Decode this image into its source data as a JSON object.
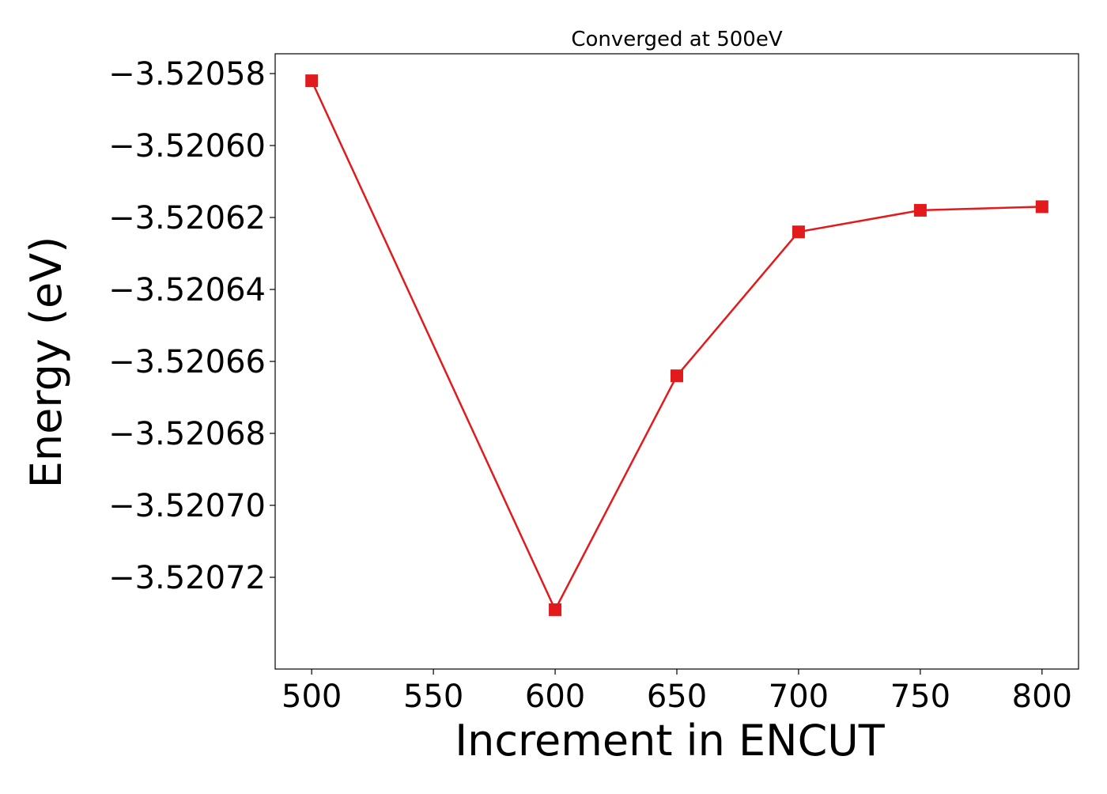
{
  "chart_data": {
    "type": "line",
    "title": "Converged at 500eV",
    "xlabel": "Increment in ENCUT",
    "ylabel": "Energy (eV)",
    "x": [
      500,
      600,
      650,
      700,
      750,
      800
    ],
    "series": [
      {
        "values": [
          -3.520582,
          -3.520729,
          -3.520664,
          -3.520624,
          -3.520618,
          -3.520617
        ],
        "color": "#e31a1c",
        "marker": "square"
      }
    ],
    "xlim": [
      485,
      815
    ],
    "ylim": [
      -3.5207455,
      -3.5205745
    ],
    "x_ticks": [
      500,
      550,
      600,
      650,
      700,
      750,
      800
    ],
    "x_tick_labels": [
      "500",
      "550",
      "600",
      "650",
      "700",
      "750",
      "800"
    ],
    "y_ticks": [
      -3.52058,
      -3.5206,
      -3.52062,
      -3.52064,
      -3.52066,
      -3.52068,
      -3.5207,
      -3.52072
    ],
    "y_tick_labels": [
      "−3.52058",
      "−3.52060",
      "−3.52062",
      "−3.52064",
      "−3.52066",
      "−3.52068",
      "−3.52070",
      "−3.52072"
    ],
    "grid": false,
    "legend": false
  }
}
